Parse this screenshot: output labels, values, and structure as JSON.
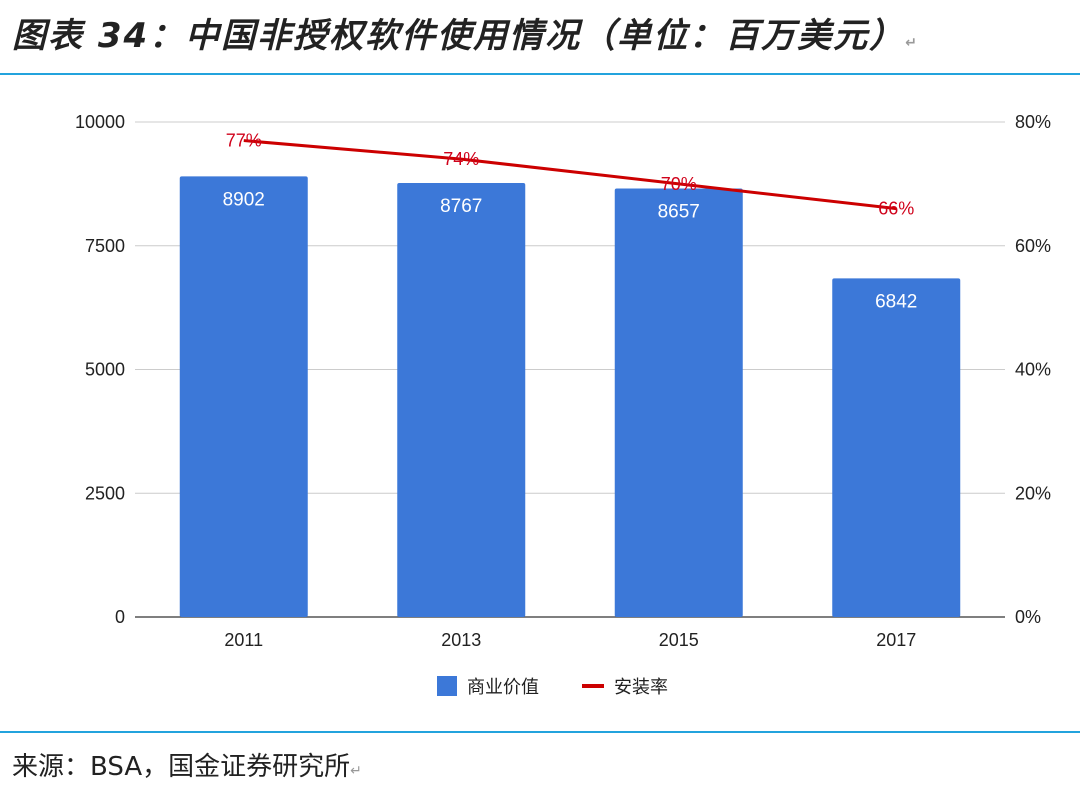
{
  "header": {
    "title": "图表 34：中国非授权软件使用情况（单位：百万美元）",
    "mark": "↵"
  },
  "footer": {
    "source": "来源：BSA，国金证券研究所",
    "mark": "↵"
  },
  "chart_data": {
    "type": "bar",
    "categories": [
      "2011",
      "2013",
      "2015",
      "2017"
    ],
    "series": [
      {
        "name": "商业价值",
        "type": "bar",
        "axis": "left",
        "values": [
          8902,
          8767,
          8657,
          6842
        ],
        "color": "#3c78d8"
      },
      {
        "name": "安装率",
        "type": "line",
        "axis": "right",
        "values": [
          77,
          74,
          70,
          66
        ],
        "labels": [
          "77%",
          "74%",
          "70%",
          "66%"
        ],
        "color": "#cc0000"
      }
    ],
    "ylim": [
      0,
      10000
    ],
    "yticks": [
      "0",
      "2500",
      "5000",
      "7500",
      "10000"
    ],
    "y2lim": [
      0,
      80
    ],
    "y2ticks": [
      "0%",
      "20%",
      "40%",
      "60%",
      "80%"
    ],
    "grid": true,
    "legend": "bottom"
  }
}
